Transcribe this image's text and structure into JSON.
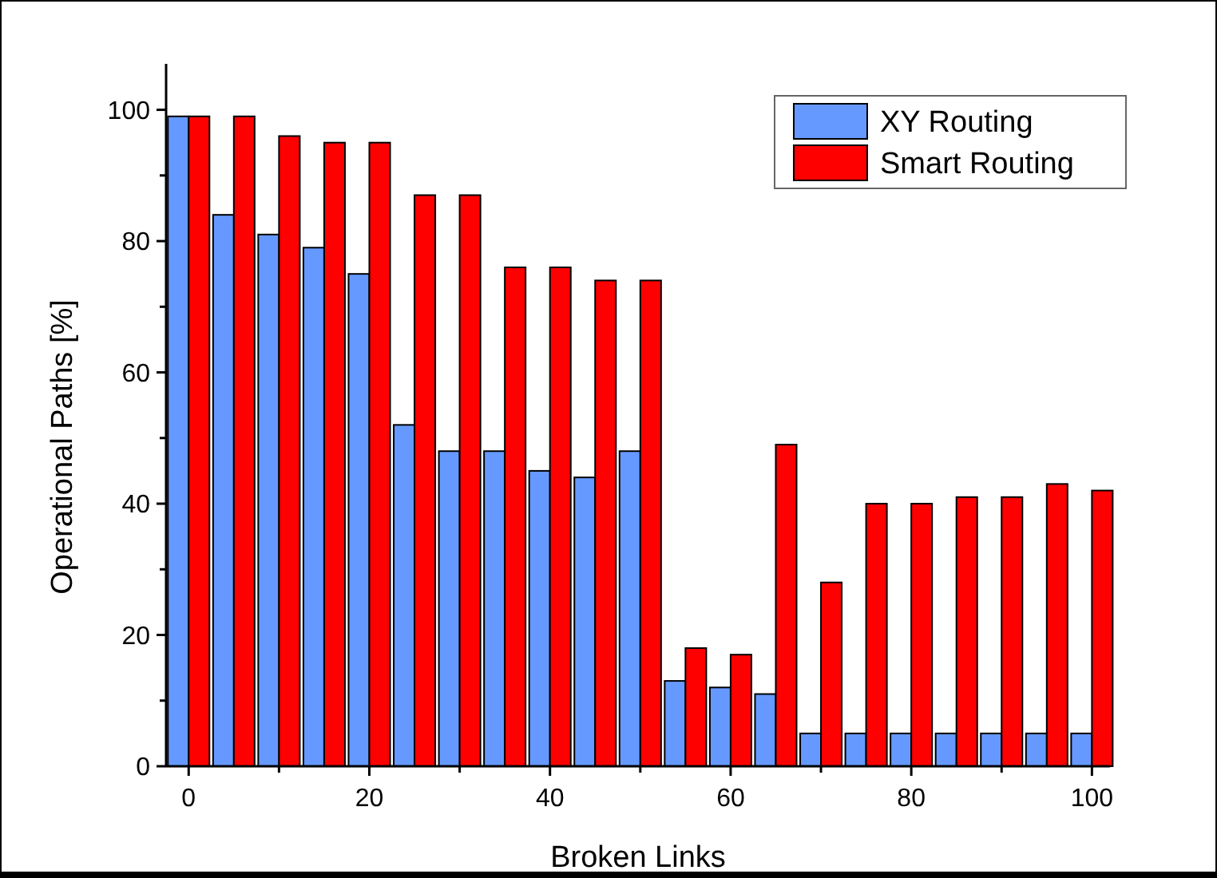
{
  "chart_data": {
    "type": "bar",
    "xlabel": "Broken Links",
    "ylabel": "Operational Paths [%]",
    "x": [
      0,
      5,
      10,
      15,
      20,
      25,
      30,
      35,
      40,
      45,
      50,
      55,
      60,
      65,
      70,
      75,
      80,
      85,
      90,
      95,
      100
    ],
    "series": [
      {
        "name": "XY Routing",
        "color": "#6699ff",
        "values": [
          99,
          84,
          81,
          79,
          75,
          52,
          48,
          48,
          45,
          44,
          48,
          13,
          12,
          11,
          5,
          5,
          5,
          5,
          5,
          5,
          5
        ]
      },
      {
        "name": "Smart Routing",
        "color": "#ff0000",
        "values": [
          99,
          99,
          96,
          95,
          95,
          87,
          87,
          76,
          76,
          74,
          74,
          18,
          17,
          49,
          28,
          40,
          40,
          41,
          41,
          43,
          42
        ]
      }
    ],
    "xlim": [
      -2.5,
      102
    ],
    "ylim": [
      0,
      107
    ],
    "xticks": [
      0,
      {
        "value": 10,
        "label": null
      },
      20,
      {
        "value": 30,
        "label": null
      },
      40,
      {
        "value": 50,
        "label": null
      },
      60,
      {
        "value": 70,
        "label": null
      },
      80,
      {
        "value": 90,
        "label": null
      },
      100
    ],
    "yticks": [
      0,
      {
        "value": 10,
        "label": null
      },
      20,
      {
        "value": 30,
        "label": null
      },
      40,
      {
        "value": 50,
        "label": null
      },
      60,
      {
        "value": 70,
        "label": null
      },
      80,
      {
        "value": 90,
        "label": null
      },
      100
    ],
    "grid": false,
    "legend": "top right"
  }
}
